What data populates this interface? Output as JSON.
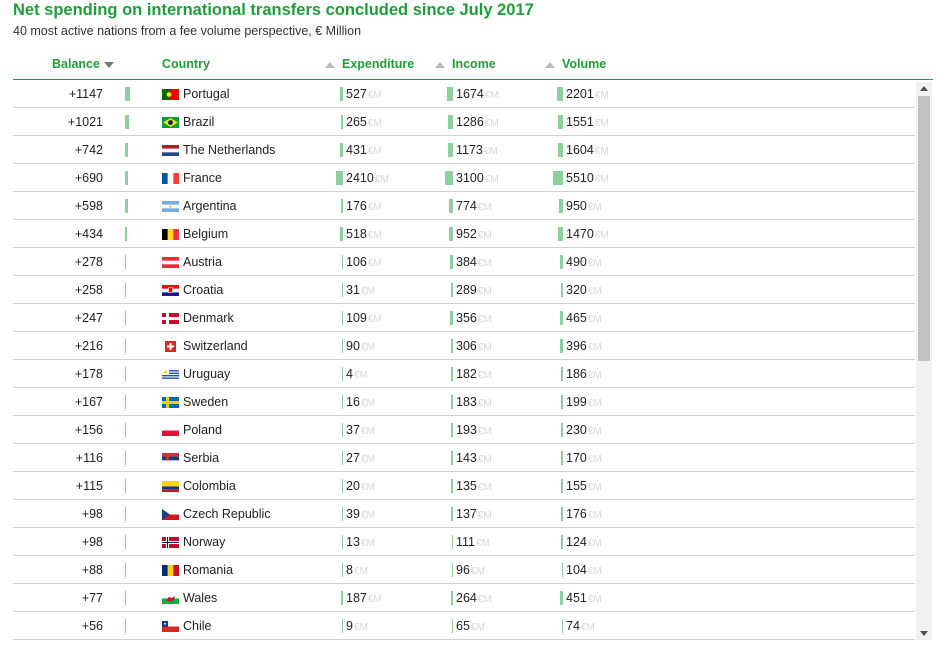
{
  "header": {
    "title": "Net spending on international transfers concluded since July 2017",
    "subtitle": "40 most active nations from a fee volume perspective, € Million"
  },
  "columns": {
    "balance": "Balance",
    "country": "Country",
    "expenditure": "Expenditure",
    "income": "Income",
    "volume": "Volume"
  },
  "unit_label": "€M",
  "colors": {
    "accent": "#1f9d3a",
    "bar": "#8ecf9e"
  },
  "sort": {
    "column": "balance",
    "direction": "descending"
  },
  "chart_data": {
    "type": "table",
    "title": "Net spending on international transfers concluded since July 2017",
    "subtitle": "40 most active nations from a fee volume perspective, € Million",
    "rows": [
      {
        "balance": "+1147",
        "country": "Portugal",
        "flag": "portugal-flag",
        "expenditure": 527,
        "income": 1674,
        "volume": 2201
      },
      {
        "balance": "+1021",
        "country": "Brazil",
        "flag": "brazil-flag",
        "expenditure": 265,
        "income": 1286,
        "volume": 1551
      },
      {
        "balance": "+742",
        "country": "The Netherlands",
        "flag": "netherlands-flag",
        "expenditure": 431,
        "income": 1173,
        "volume": 1604
      },
      {
        "balance": "+690",
        "country": "France",
        "flag": "france-flag",
        "expenditure": 2410,
        "income": 3100,
        "volume": 5510
      },
      {
        "balance": "+598",
        "country": "Argentina",
        "flag": "argentina-flag",
        "expenditure": 176,
        "income": 774,
        "volume": 950
      },
      {
        "balance": "+434",
        "country": "Belgium",
        "flag": "belgium-flag",
        "expenditure": 518,
        "income": 952,
        "volume": 1470
      },
      {
        "balance": "+278",
        "country": "Austria",
        "flag": "austria-flag",
        "expenditure": 106,
        "income": 384,
        "volume": 490
      },
      {
        "balance": "+258",
        "country": "Croatia",
        "flag": "croatia-flag",
        "expenditure": 31,
        "income": 289,
        "volume": 320
      },
      {
        "balance": "+247",
        "country": "Denmark",
        "flag": "denmark-flag",
        "expenditure": 109,
        "income": 356,
        "volume": 465
      },
      {
        "balance": "+216",
        "country": "Switzerland",
        "flag": "switzerland-flag",
        "expenditure": 90,
        "income": 306,
        "volume": 396
      },
      {
        "balance": "+178",
        "country": "Uruguay",
        "flag": "uruguay-flag",
        "expenditure": 4,
        "income": 182,
        "volume": 186
      },
      {
        "balance": "+167",
        "country": "Sweden",
        "flag": "sweden-flag",
        "expenditure": 16,
        "income": 183,
        "volume": 199
      },
      {
        "balance": "+156",
        "country": "Poland",
        "flag": "poland-flag",
        "expenditure": 37,
        "income": 193,
        "volume": 230
      },
      {
        "balance": "+116",
        "country": "Serbia",
        "flag": "serbia-flag",
        "expenditure": 27,
        "income": 143,
        "volume": 170
      },
      {
        "balance": "+115",
        "country": "Colombia",
        "flag": "colombia-flag",
        "expenditure": 20,
        "income": 135,
        "volume": 155
      },
      {
        "balance": "+98",
        "country": "Czech Republic",
        "flag": "czech-republic-flag",
        "expenditure": 39,
        "income": 137,
        "volume": 176
      },
      {
        "balance": "+98",
        "country": "Norway",
        "flag": "norway-flag",
        "expenditure": 13,
        "income": 111,
        "volume": 124
      },
      {
        "balance": "+88",
        "country": "Romania",
        "flag": "romania-flag",
        "expenditure": 8,
        "income": 96,
        "volume": 104
      },
      {
        "balance": "+77",
        "country": "Wales",
        "flag": "wales-flag",
        "expenditure": 187,
        "income": 264,
        "volume": 451
      },
      {
        "balance": "+56",
        "country": "Chile",
        "flag": "chile-flag",
        "expenditure": 9,
        "income": 65,
        "volume": 74
      }
    ]
  }
}
